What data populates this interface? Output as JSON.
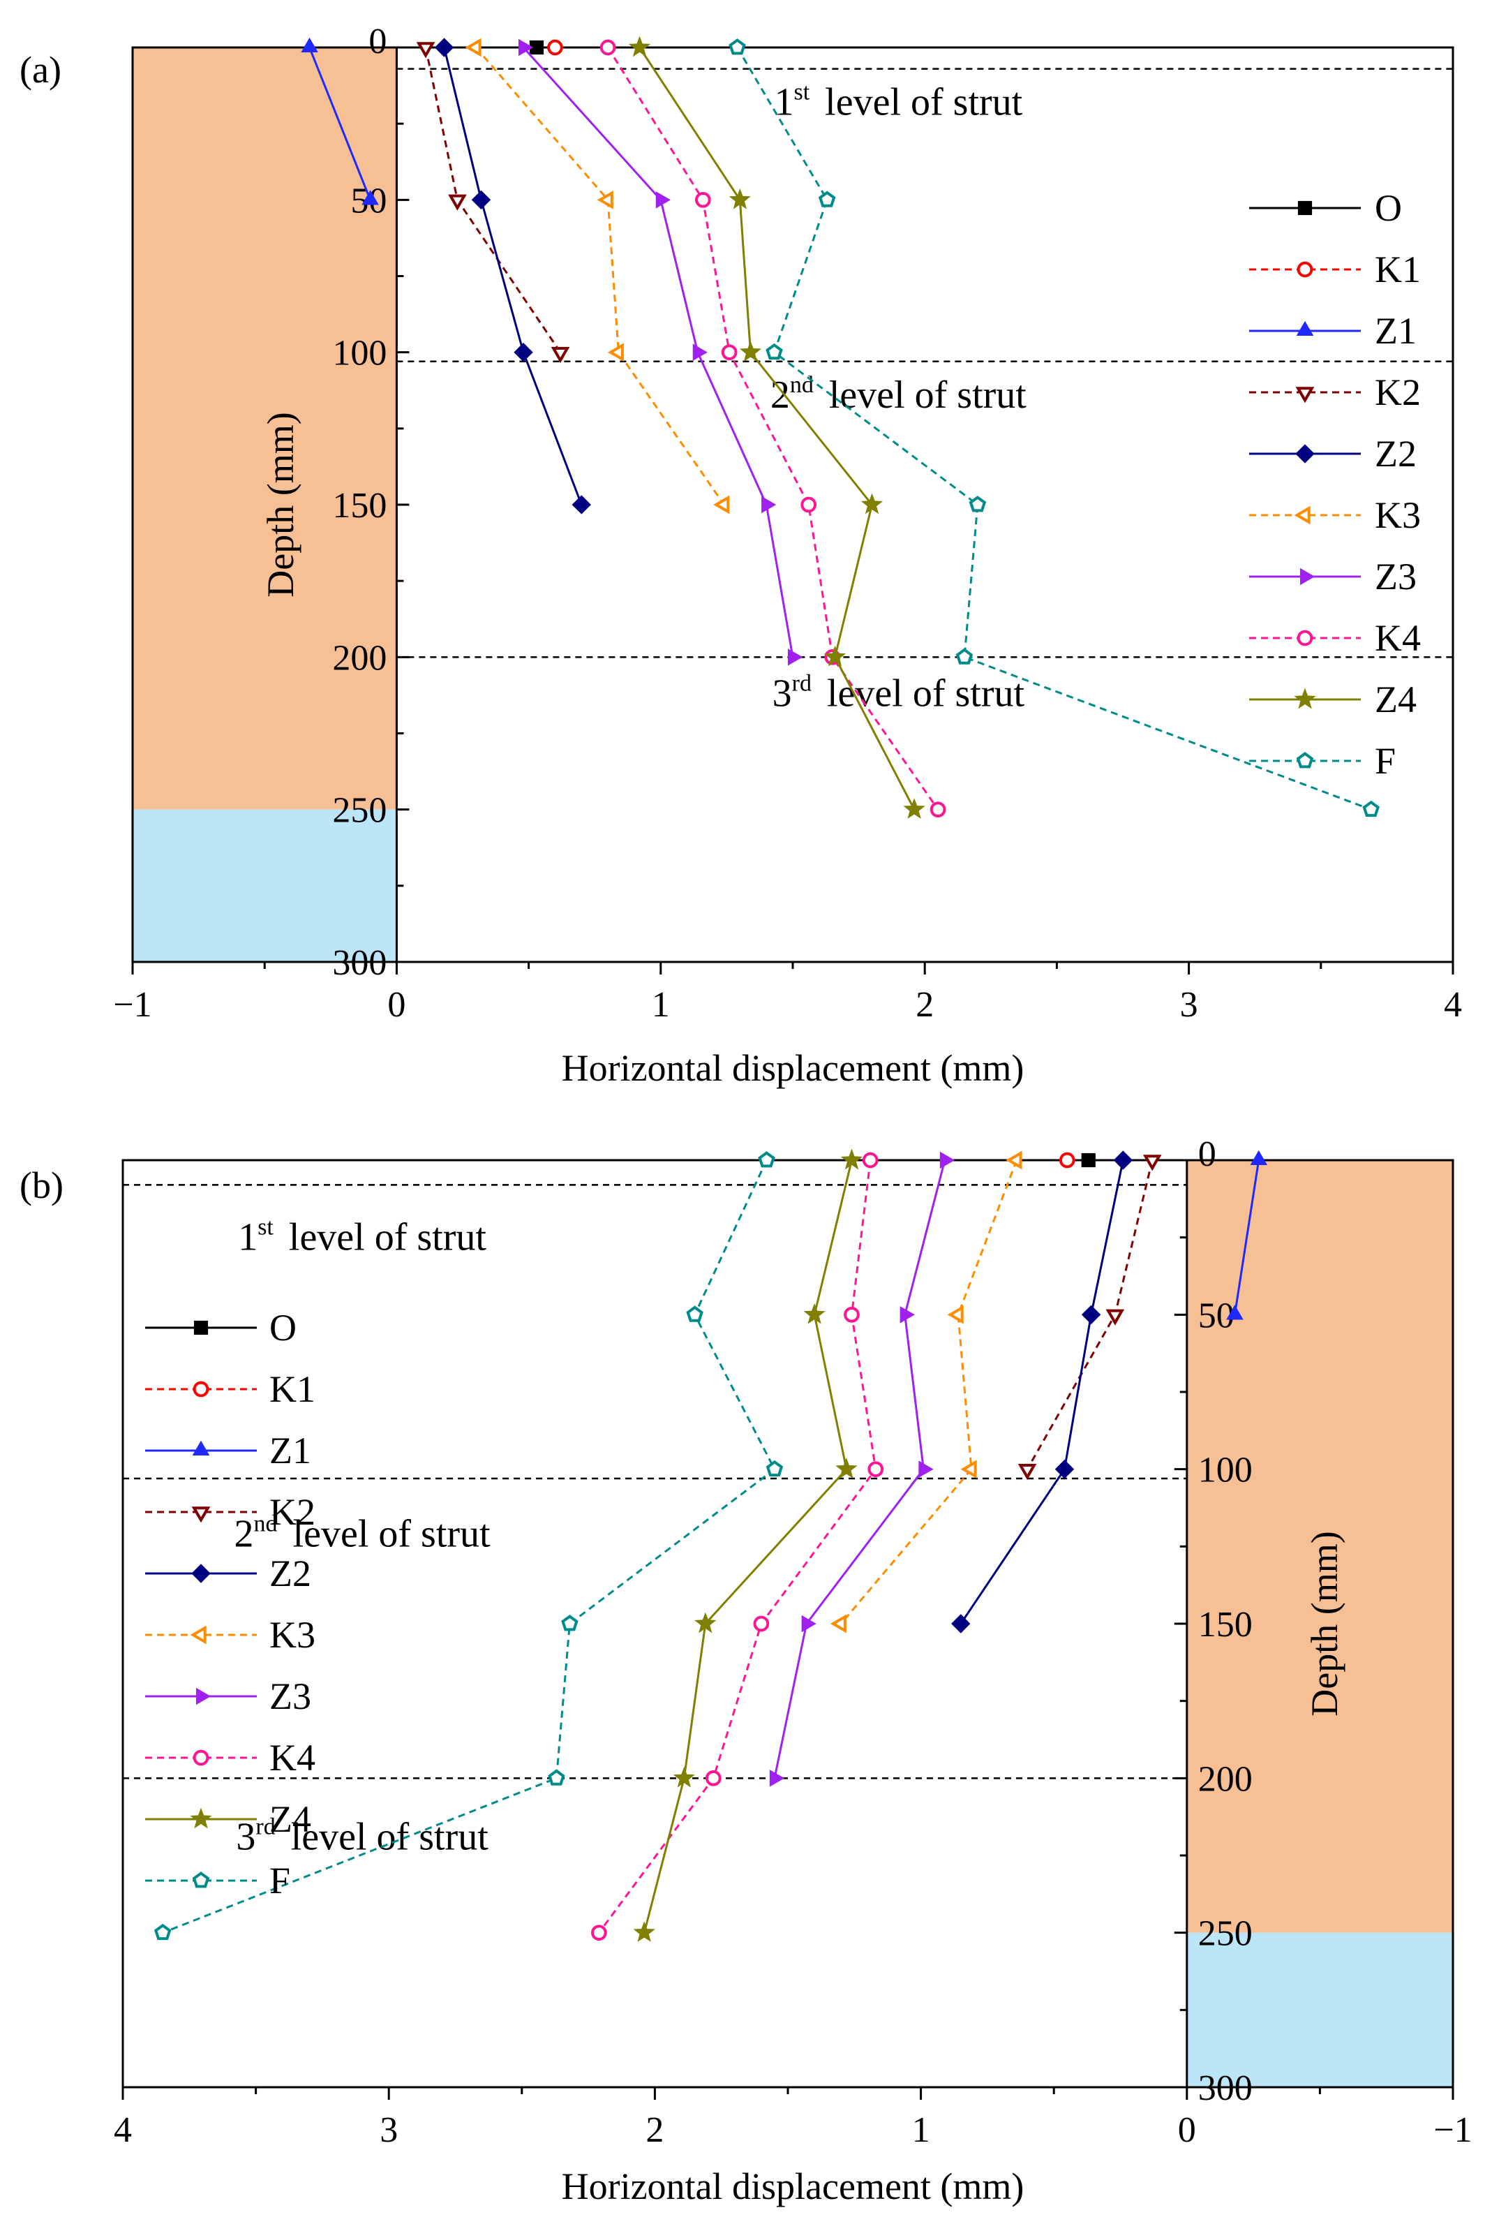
{
  "colors": {
    "soil_upper": "#f7bf94",
    "soil_lower": "#bde5f8",
    "O": "#000000",
    "K1": "#ff0000",
    "Z1": "#1e28ff",
    "K2": "#800000",
    "Z2": "#000080",
    "K3": "#ff8c00",
    "Z3": "#a020f0",
    "K4": "#ff1493",
    "Z4": "#808000",
    "F": "#008b8b"
  },
  "chart_data": [
    {
      "type": "line",
      "panel_label": "(a)",
      "xlabel": "Horizontal displacement (mm)",
      "ylabel": "Depth (mm)",
      "xlim": [
        -1,
        4
      ],
      "ylim": [
        0,
        300
      ],
      "x_reversed": false,
      "y_inverted": true,
      "x_ticks": [
        -1,
        0,
        1,
        2,
        3,
        4
      ],
      "x_tick_labels": [
        "−1",
        "0",
        "1",
        "2",
        "3",
        "4"
      ],
      "y_ticks": [
        0,
        50,
        100,
        150,
        200,
        250,
        300
      ],
      "y_tick_labels": [
        "0",
        "50",
        "100",
        "150",
        "200",
        "250",
        "300"
      ],
      "soil_layers": [
        {
          "name": "upper",
          "from_depth": 0,
          "to_depth": 250,
          "x_from": -1,
          "x_to": 0
        },
        {
          "name": "lower",
          "from_depth": 250,
          "to_depth": 300,
          "x_from": -1,
          "x_to": 0
        }
      ],
      "strut_levels": [
        {
          "depth": 7,
          "ord": "1",
          "sup": "st",
          "text": "level of strut",
          "label_x": 1.9,
          "label_depth": 18
        },
        {
          "depth": 103,
          "ord": "2",
          "sup": "nd",
          "text": "level of strut",
          "label_x": 1.9,
          "label_depth": 114
        },
        {
          "depth": 200,
          "ord": "3",
          "sup": "rd",
          "text": "level of strut",
          "label_x": 1.9,
          "label_depth": 212
        }
      ],
      "series": [
        {
          "name": "O",
          "marker": "square",
          "dashed": false,
          "x": [
            0.53
          ],
          "y": [
            0
          ]
        },
        {
          "name": "K1",
          "marker": "circle",
          "dashed": true,
          "x": [
            0.6
          ],
          "y": [
            0
          ]
        },
        {
          "name": "Z1",
          "marker": "triangle-up",
          "dashed": false,
          "x": [
            -0.33,
            -0.1
          ],
          "y": [
            0,
            50
          ]
        },
        {
          "name": "K2",
          "marker": "triangle-down",
          "dashed": true,
          "x": [
            0.11,
            0.23,
            0.62
          ],
          "y": [
            0,
            50,
            100
          ]
        },
        {
          "name": "Z2",
          "marker": "diamond",
          "dashed": false,
          "x": [
            0.18,
            0.32,
            0.48,
            0.7
          ],
          "y": [
            0,
            50,
            100,
            150
          ]
        },
        {
          "name": "K3",
          "marker": "triangle-left",
          "dashed": true,
          "x": [
            0.3,
            0.8,
            0.84,
            1.24
          ],
          "y": [
            0,
            50,
            100,
            150
          ]
        },
        {
          "name": "Z3",
          "marker": "triangle-right",
          "dashed": false,
          "x": [
            0.48,
            1.0,
            1.14,
            1.4,
            1.5
          ],
          "y": [
            0,
            50,
            100,
            150,
            200
          ]
        },
        {
          "name": "K4",
          "marker": "circle",
          "dashed": true,
          "x": [
            0.8,
            1.16,
            1.26,
            1.56,
            1.65,
            2.05
          ],
          "y": [
            0,
            50,
            100,
            150,
            200,
            250
          ]
        },
        {
          "name": "Z4",
          "marker": "star",
          "dashed": false,
          "x": [
            0.92,
            1.3,
            1.34,
            1.8,
            1.66,
            1.96
          ],
          "y": [
            0,
            50,
            100,
            150,
            200,
            250
          ]
        },
        {
          "name": "F",
          "marker": "pentagon",
          "dashed": true,
          "x": [
            1.29,
            1.63,
            1.43,
            2.2,
            2.15,
            3.69
          ],
          "y": [
            0,
            50,
            100,
            150,
            200,
            250
          ]
        }
      ]
    },
    {
      "type": "line",
      "panel_label": "(b)",
      "xlabel": "Horizontal displacement (mm)",
      "ylabel": "Depth (mm)",
      "xlim": [
        4,
        -1
      ],
      "ylim": [
        0,
        300
      ],
      "x_reversed": true,
      "y_inverted": true,
      "x_ticks": [
        4,
        3,
        2,
        1,
        0,
        -1
      ],
      "x_tick_labels": [
        "4",
        "3",
        "2",
        "1",
        "0",
        "−1"
      ],
      "y_ticks": [
        0,
        50,
        100,
        150,
        200,
        250,
        300
      ],
      "y_tick_labels": [
        "0",
        "50",
        "100",
        "150",
        "200",
        "250",
        "300"
      ],
      "soil_layers": [
        {
          "name": "upper",
          "from_depth": 0,
          "to_depth": 250,
          "x_from": 0,
          "x_to": -1
        },
        {
          "name": "lower",
          "from_depth": 250,
          "to_depth": 300,
          "x_from": 0,
          "x_to": -1
        }
      ],
      "strut_levels": [
        {
          "depth": 8,
          "ord": "1",
          "sup": "st",
          "text": "level of strut",
          "label_x": 3.1,
          "label_depth": 25
        },
        {
          "depth": 103,
          "ord": "2",
          "sup": "nd",
          "text": "level of strut",
          "label_x": 3.1,
          "label_depth": 121
        },
        {
          "depth": 200,
          "ord": "3",
          "sup": "rd",
          "text": "level of strut",
          "label_x": 3.1,
          "label_depth": 219
        }
      ],
      "series": [
        {
          "name": "O",
          "marker": "square",
          "dashed": false,
          "x": [
            0.37
          ],
          "y": [
            0
          ]
        },
        {
          "name": "K1",
          "marker": "circle",
          "dashed": true,
          "x": [
            0.45
          ],
          "y": [
            0
          ]
        },
        {
          "name": "Z1",
          "marker": "triangle-up",
          "dashed": false,
          "x": [
            -0.27,
            -0.18
          ],
          "y": [
            0,
            50
          ]
        },
        {
          "name": "K2",
          "marker": "triangle-down",
          "dashed": true,
          "x": [
            0.13,
            0.27,
            0.6
          ],
          "y": [
            0,
            50,
            100
          ]
        },
        {
          "name": "Z2",
          "marker": "diamond",
          "dashed": false,
          "x": [
            0.24,
            0.36,
            0.46,
            0.85
          ],
          "y": [
            0,
            50,
            100,
            150
          ]
        },
        {
          "name": "K3",
          "marker": "triangle-left",
          "dashed": true,
          "x": [
            0.64,
            0.86,
            0.81,
            1.3
          ],
          "y": [
            0,
            50,
            100,
            150
          ]
        },
        {
          "name": "Z3",
          "marker": "triangle-right",
          "dashed": false,
          "x": [
            0.91,
            1.06,
            0.99,
            1.43,
            1.55
          ],
          "y": [
            0,
            50,
            100,
            150,
            200
          ]
        },
        {
          "name": "K4",
          "marker": "circle",
          "dashed": true,
          "x": [
            1.19,
            1.26,
            1.17,
            1.6,
            1.78,
            2.21
          ],
          "y": [
            0,
            50,
            100,
            150,
            200,
            250
          ]
        },
        {
          "name": "Z4",
          "marker": "star",
          "dashed": false,
          "x": [
            1.26,
            1.4,
            1.28,
            1.81,
            1.89,
            2.04
          ],
          "y": [
            0,
            50,
            100,
            150,
            200,
            250
          ]
        },
        {
          "name": "F",
          "marker": "pentagon",
          "dashed": true,
          "x": [
            1.58,
            1.85,
            1.55,
            2.32,
            2.37,
            3.85
          ],
          "y": [
            0,
            50,
            100,
            150,
            200,
            250
          ]
        }
      ]
    }
  ]
}
